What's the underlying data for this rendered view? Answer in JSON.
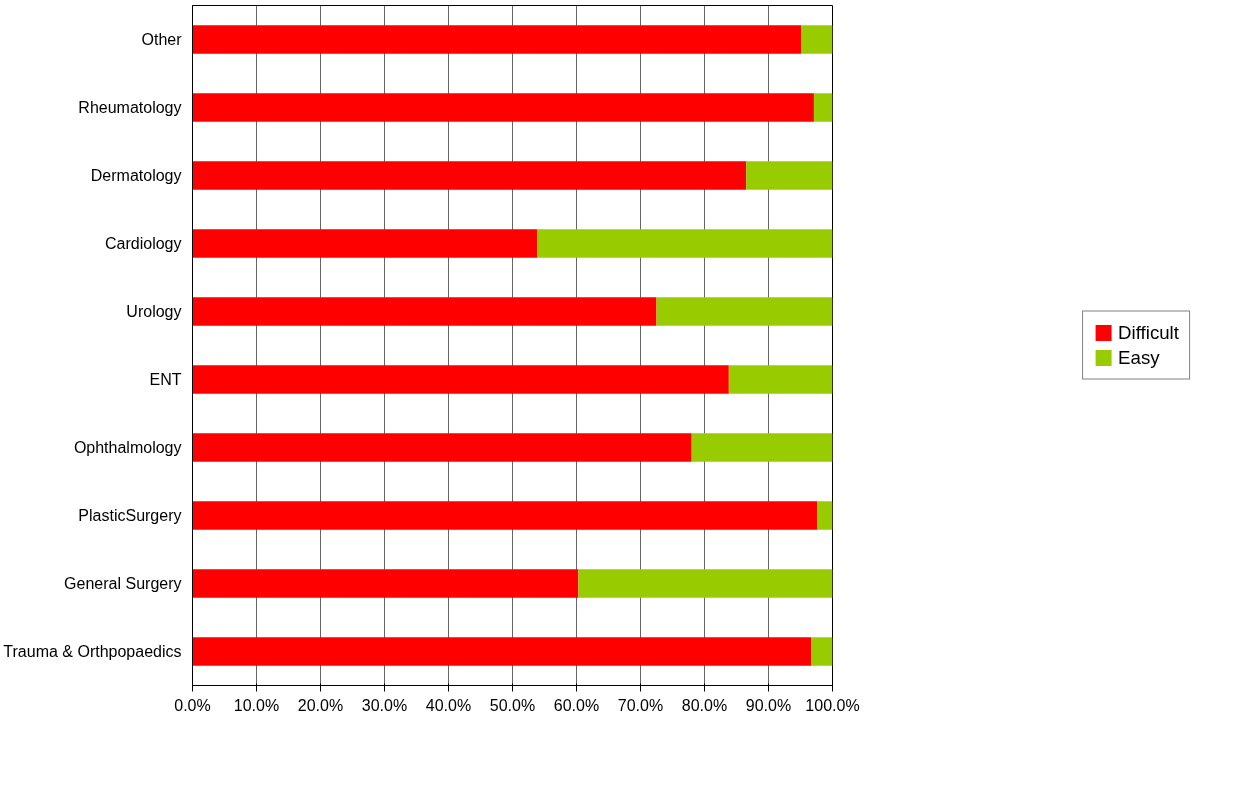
{
  "chart_data": {
    "type": "bar",
    "orientation": "horizontal",
    "stacked": true,
    "categories": [
      "Other",
      "Rheumatology",
      "Dermatology",
      "Cardiology",
      "Urology",
      "ENT",
      "Ophthalmology",
      "PlasticSurgery",
      "General Surgery",
      "Trauma & Orthpopaedics"
    ],
    "series": [
      {
        "name": "Difficult",
        "color": "#ff0000",
        "values": [
          95.1,
          97.1,
          86.5,
          53.9,
          72.5,
          83.8,
          78.0,
          97.6,
          60.3,
          96.7
        ]
      },
      {
        "name": "Easy",
        "color": "#99cc00",
        "values": [
          4.9,
          2.9,
          13.5,
          46.1,
          27.5,
          16.2,
          22.0,
          2.4,
          39.7,
          3.3
        ]
      }
    ],
    "xlim": [
      0,
      100
    ],
    "xticks": [
      {
        "value": 0,
        "label": "0.0%"
      },
      {
        "value": 10,
        "label": "10.0%"
      },
      {
        "value": 20,
        "label": "20.0%"
      },
      {
        "value": 30,
        "label": "30.0%"
      },
      {
        "value": 40,
        "label": "40.0%"
      },
      {
        "value": 50,
        "label": "50.0%"
      },
      {
        "value": 60,
        "label": "60.0%"
      },
      {
        "value": 70,
        "label": "70.0%"
      },
      {
        "value": 80,
        "label": "80.0%"
      },
      {
        "value": 90,
        "label": "90.0%"
      },
      {
        "value": 100,
        "label": "100.0%"
      }
    ],
    "grid": "x",
    "legend": "right"
  }
}
